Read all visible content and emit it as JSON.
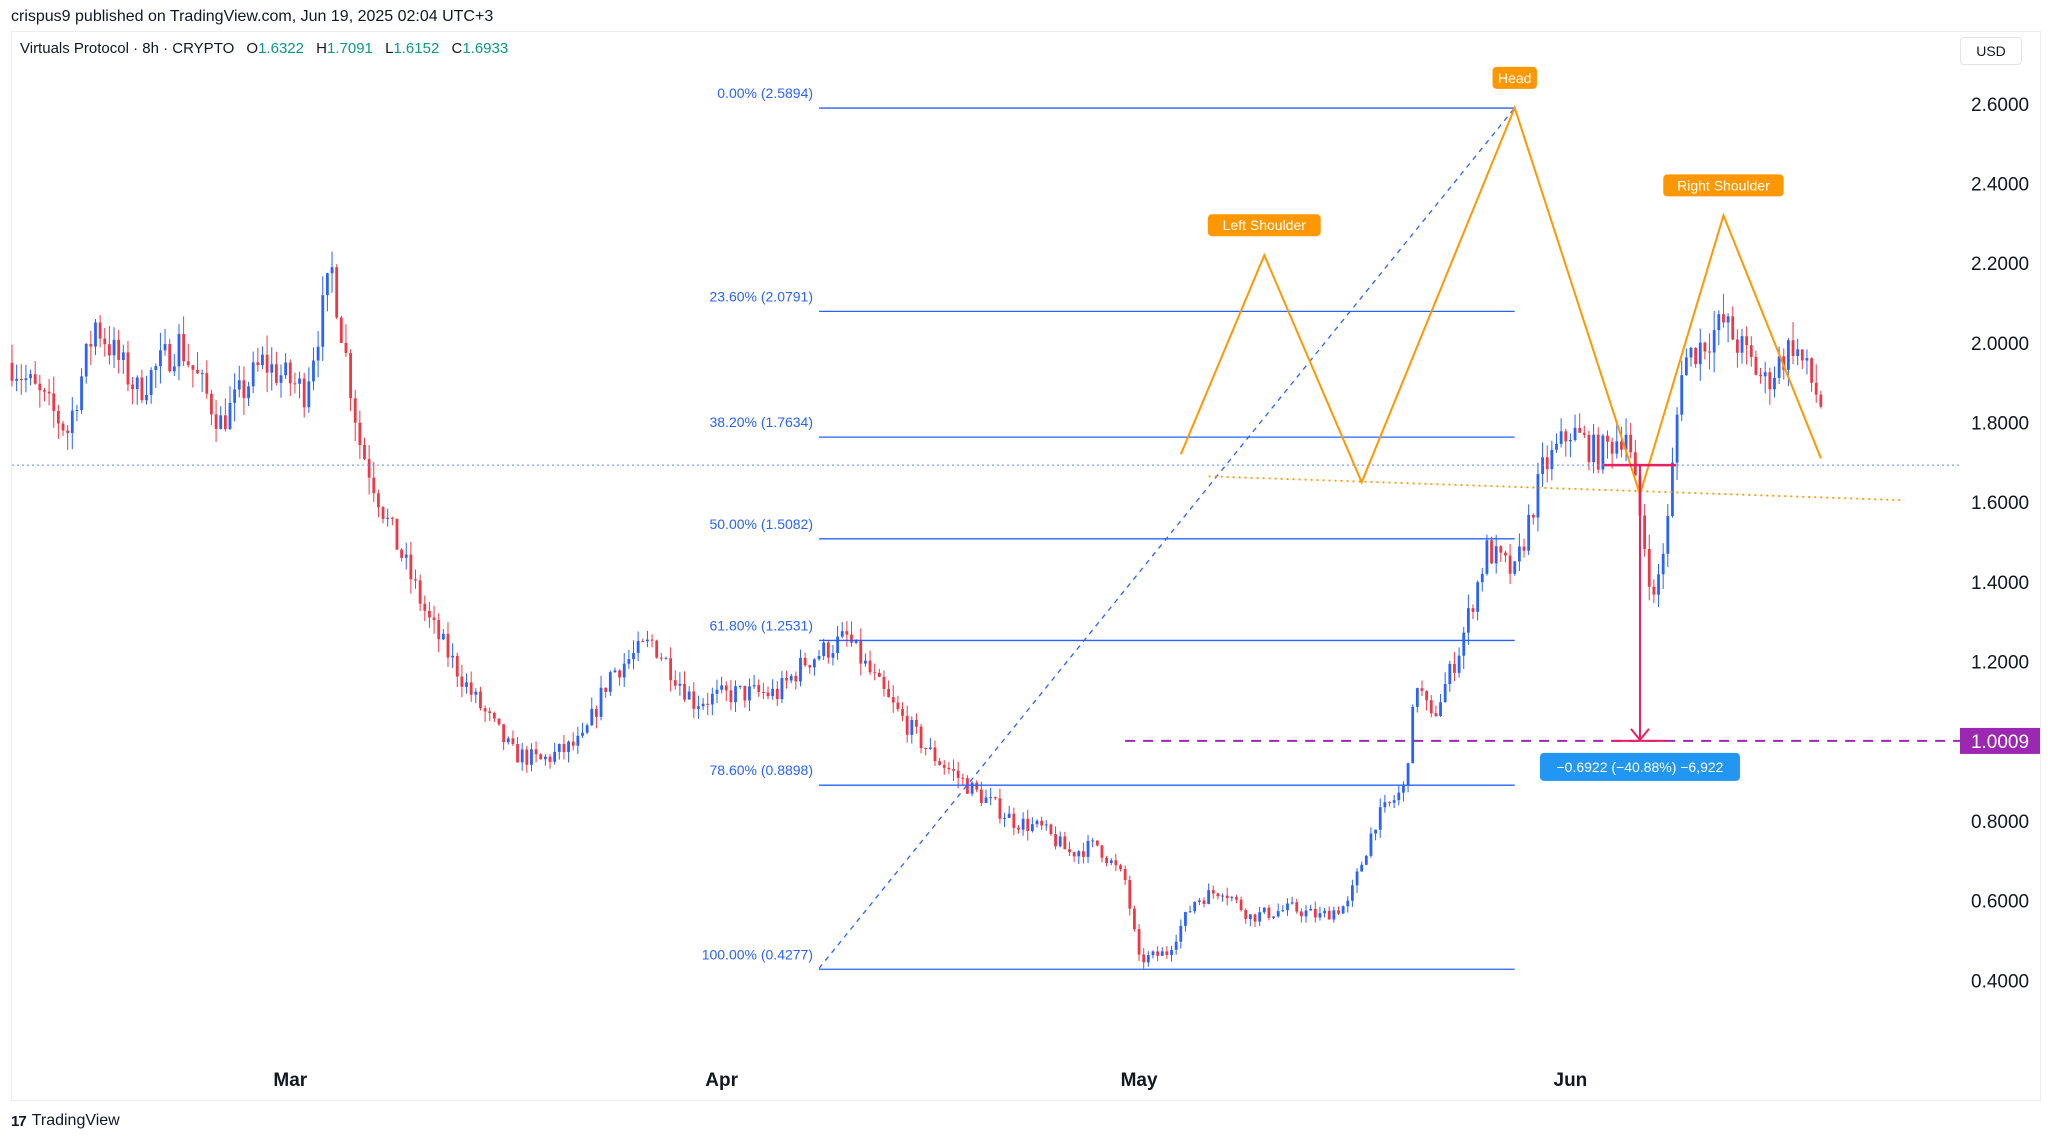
{
  "header": {
    "publish_line": "crispus9 published on TradingView.com, Jun 19, 2025 02:04 UTC+3"
  },
  "legend": {
    "symbol": "Virtuals Protocol · 8h · CRYPTO",
    "open_label": "O",
    "open": "1.6322",
    "high_label": "H",
    "high": "1.7091",
    "low_label": "L",
    "low": "1.6152",
    "close_label": "C",
    "close": "1.6933"
  },
  "currency": "USD",
  "footer": {
    "brand": "TradingView"
  },
  "colors": {
    "up": "#2962ff",
    "down": "#f23645",
    "fib": "#2962ff",
    "pattern": "#ff9800",
    "target": "#9c27b0",
    "measure": "#e91e63",
    "measure_box": "#2196f3",
    "last_price_line": "#5b8def"
  },
  "chart_data": {
    "type": "candlestick",
    "timeframe": "8h",
    "x_labels": [
      {
        "label": "Mar",
        "date": "2025-03-01"
      },
      {
        "label": "Apr",
        "date": "2025-04-01"
      },
      {
        "label": "May",
        "date": "2025-05-01"
      },
      {
        "label": "Jun",
        "date": "2025-06-01"
      }
    ],
    "y_ticks": [
      "2.6000",
      "2.4000",
      "2.2000",
      "2.0000",
      "1.8000",
      "1.6000",
      "1.4000",
      "1.2000",
      "1.0000",
      "0.8000",
      "0.6000",
      "0.4000"
    ],
    "ylim": [
      0.2,
      2.7
    ],
    "xlim": [
      "2025-02-09",
      "2025-06-29"
    ],
    "fibonacci": {
      "start": "2025-04-08",
      "end": "2025-05-28",
      "levels": [
        {
          "label": "0.00% (2.5894)",
          "value": 2.5894
        },
        {
          "label": "23.60% (2.0791)",
          "value": 2.0791
        },
        {
          "label": "38.20% (1.7634)",
          "value": 1.7634
        },
        {
          "label": "50.00% (1.5082)",
          "value": 1.5082
        },
        {
          "label": "61.80% (1.2531)",
          "value": 1.2531
        },
        {
          "label": "78.60% (0.8898)",
          "value": 0.8898
        },
        {
          "label": "100.00% (0.4277)",
          "value": 0.4277
        }
      ]
    },
    "trend_line": {
      "from": [
        "2025-04-08",
        0.43
      ],
      "to": [
        "2025-05-28",
        2.59
      ]
    },
    "head_and_shoulders": {
      "path": [
        [
          "2025-05-04",
          1.72
        ],
        [
          "2025-05-10",
          2.22
        ],
        [
          "2025-05-17",
          1.65
        ],
        [
          "2025-05-28",
          2.59
        ],
        [
          "2025-06-06",
          1.62
        ],
        [
          "2025-06-12",
          2.32
        ],
        [
          "2025-06-19",
          1.71
        ]
      ],
      "labels": [
        {
          "text": "Left Shoulder",
          "date": "2025-05-10",
          "value": 2.22
        },
        {
          "text": "Head",
          "date": "2025-05-28",
          "value": 2.59
        },
        {
          "text": "Right Shoulder",
          "date": "2025-06-12",
          "value": 2.32
        }
      ],
      "neckline": {
        "from": [
          "2025-05-06",
          1.665
        ],
        "to": [
          "2025-06-25",
          1.605
        ]
      }
    },
    "target": {
      "value": 1.0009,
      "label": "1.0009",
      "from": "2025-04-30"
    },
    "measure": {
      "date": "2025-06-06",
      "from": 1.6931,
      "to": 1.0009,
      "text": "−0.6922 (−40.88%) −6,922"
    },
    "last_price": 1.6933,
    "anchors": [
      [
        "2025-02-09",
        1.95
      ],
      [
        "2025-02-13",
        1.78
      ],
      [
        "2025-02-15",
        2.05
      ],
      [
        "2025-02-18",
        1.88
      ],
      [
        "2025-02-21",
        2.0
      ],
      [
        "2025-02-24",
        1.8
      ],
      [
        "2025-02-27",
        1.95
      ],
      [
        "2025-03-02",
        1.88
      ],
      [
        "2025-03-04",
        2.18
      ],
      [
        "2025-03-06",
        1.75
      ],
      [
        "2025-03-08",
        1.55
      ],
      [
        "2025-03-11",
        1.3
      ],
      [
        "2025-03-14",
        1.12
      ],
      [
        "2025-03-17",
        0.97
      ],
      [
        "2025-03-19",
        0.95
      ],
      [
        "2025-03-22",
        1.0
      ],
      [
        "2025-03-24",
        1.17
      ],
      [
        "2025-03-27",
        1.25
      ],
      [
        "2025-03-30",
        1.1
      ],
      [
        "2025-04-02",
        1.12
      ],
      [
        "2025-04-05",
        1.12
      ],
      [
        "2025-04-07",
        1.2
      ],
      [
        "2025-04-10",
        1.26
      ],
      [
        "2025-04-13",
        1.1
      ],
      [
        "2025-04-16",
        0.97
      ],
      [
        "2025-04-19",
        0.88
      ],
      [
        "2025-04-22",
        0.8
      ],
      [
        "2025-04-24",
        0.78
      ],
      [
        "2025-04-26",
        0.72
      ],
      [
        "2025-04-28",
        0.74
      ],
      [
        "2025-04-30",
        0.65
      ],
      [
        "2025-05-01",
        0.45
      ],
      [
        "2025-05-03",
        0.47
      ],
      [
        "2025-05-05",
        0.6
      ],
      [
        "2025-05-07",
        0.63
      ],
      [
        "2025-05-09",
        0.56
      ],
      [
        "2025-05-12",
        0.58
      ],
      [
        "2025-05-14",
        0.56
      ],
      [
        "2025-05-16",
        0.59
      ],
      [
        "2025-05-18",
        0.8
      ],
      [
        "2025-05-20",
        0.88
      ],
      [
        "2025-05-21",
        1.15
      ],
      [
        "2025-05-22",
        1.05
      ],
      [
        "2025-05-24",
        1.23
      ],
      [
        "2025-05-26",
        1.48
      ],
      [
        "2025-05-28",
        1.42
      ],
      [
        "2025-05-30",
        1.68
      ],
      [
        "2025-06-01",
        1.78
      ],
      [
        "2025-06-03",
        1.72
      ],
      [
        "2025-06-05",
        1.78
      ],
      [
        "2025-06-07",
        1.35
      ],
      [
        "2025-06-08",
        1.55
      ],
      [
        "2025-06-09",
        1.95
      ],
      [
        "2025-06-12",
        2.05
      ],
      [
        "2025-06-15",
        1.9
      ],
      [
        "2025-06-17",
        2.0
      ],
      [
        "2025-06-19",
        1.85
      ]
    ]
  }
}
